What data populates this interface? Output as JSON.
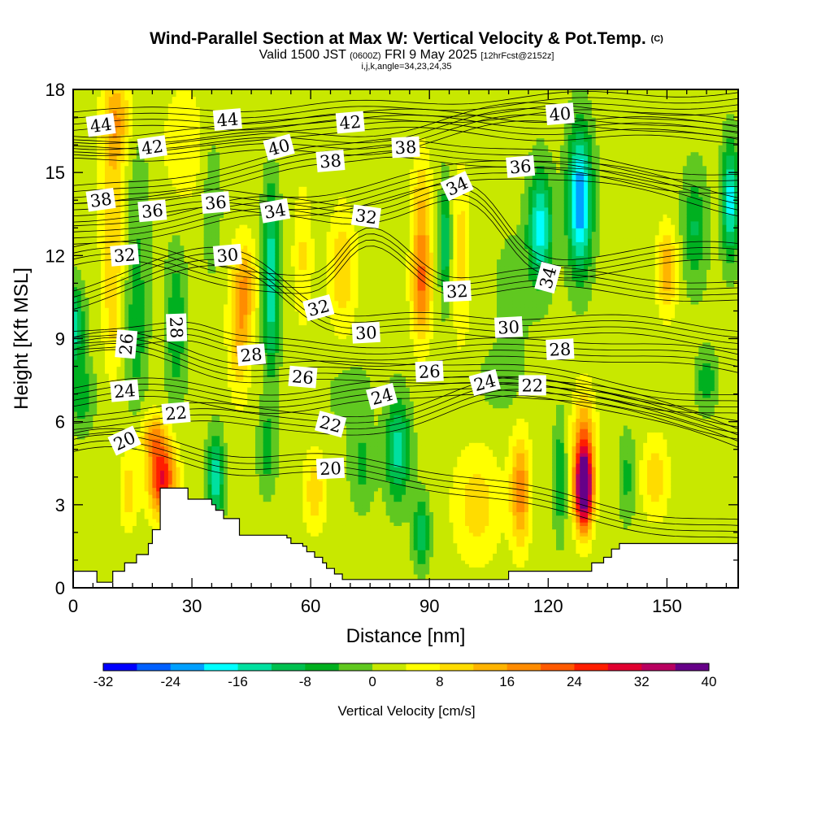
{
  "header": {
    "title_main": "Wind-Parallel Section at Max W: Vertical Velocity & Pot.Temp.",
    "title_mark": "(C)",
    "sub_a": "Valid 1500 JST",
    "sub_b": "(0600Z)",
    "sub_c": "FRI 9 May 2025",
    "sub_d": "[12hrFcst@2152z]",
    "params": "i,j,k,angle=34,23,24,35"
  },
  "chart_data": {
    "type": "heatmap",
    "xlabel": "Distance [nm]",
    "ylabel": "Height [Kft MSL]",
    "xlim": [
      0,
      168
    ],
    "ylim": [
      0,
      18
    ],
    "xticks": [
      0,
      30,
      60,
      90,
      120,
      150
    ],
    "yticks": [
      0,
      3,
      6,
      9,
      12,
      15,
      18
    ],
    "colorbar": {
      "label": "Vertical Velocity [cm/s]",
      "ticks": [
        -32,
        -24,
        -16,
        -8,
        0,
        8,
        16,
        24,
        32,
        40
      ],
      "levels": [
        -32,
        -28,
        -24,
        -20,
        -16,
        -12,
        -8,
        -4,
        0,
        4,
        8,
        12,
        16,
        20,
        24,
        28,
        32,
        36,
        40
      ],
      "colors": [
        "#0000ff",
        "#0060ff",
        "#00a0ff",
        "#00ffff",
        "#00e0a0",
        "#00c050",
        "#00b020",
        "#60c820",
        "#c8e800",
        "#ffff00",
        "#ffdc00",
        "#ffb400",
        "#ff8c00",
        "#ff5a00",
        "#ff1e00",
        "#e00030",
        "#b80060",
        "#660088"
      ]
    },
    "theta_levels": [
      20,
      22,
      24,
      26,
      28,
      30,
      32,
      34,
      36,
      38,
      40,
      42,
      44
    ],
    "contour_labels": [
      {
        "text": "44",
        "x": 7,
        "y": 16.7,
        "rot": -8
      },
      {
        "text": "44",
        "x": 39,
        "y": 16.9,
        "rot": -5
      },
      {
        "text": "42",
        "x": 70,
        "y": 16.8,
        "rot": -5
      },
      {
        "text": "40",
        "x": 123,
        "y": 17.1,
        "rot": -5
      },
      {
        "text": "42",
        "x": 20,
        "y": 15.9,
        "rot": -8
      },
      {
        "text": "40",
        "x": 52,
        "y": 15.9,
        "rot": -15
      },
      {
        "text": "38",
        "x": 65,
        "y": 15.4,
        "rot": -5
      },
      {
        "text": "38",
        "x": 84,
        "y": 15.9,
        "rot": -3
      },
      {
        "text": "36",
        "x": 113,
        "y": 15.2,
        "rot": -5
      },
      {
        "text": "34",
        "x": 97,
        "y": 14.5,
        "rot": -25
      },
      {
        "text": "38",
        "x": 7,
        "y": 14.0,
        "rot": -8
      },
      {
        "text": "36",
        "x": 20,
        "y": 13.6,
        "rot": -5
      },
      {
        "text": "36",
        "x": 36,
        "y": 13.9,
        "rot": -5
      },
      {
        "text": "34",
        "x": 51,
        "y": 13.6,
        "rot": -10
      },
      {
        "text": "32",
        "x": 74,
        "y": 13.4,
        "rot": 8
      },
      {
        "text": "32",
        "x": 13,
        "y": 12.0,
        "rot": -5
      },
      {
        "text": "30",
        "x": 39,
        "y": 12.0,
        "rot": -5
      },
      {
        "text": "34",
        "x": 120,
        "y": 11.2,
        "rot": -75
      },
      {
        "text": "28",
        "x": 26,
        "y": 9.4,
        "rot": 88
      },
      {
        "text": "26",
        "x": 13.5,
        "y": 8.8,
        "rot": -85
      },
      {
        "text": "32",
        "x": 62,
        "y": 10.1,
        "rot": -15
      },
      {
        "text": "32",
        "x": 97,
        "y": 10.7,
        "rot": -3
      },
      {
        "text": "30",
        "x": 74,
        "y": 9.2,
        "rot": -3
      },
      {
        "text": "30",
        "x": 110,
        "y": 9.4,
        "rot": -3
      },
      {
        "text": "28",
        "x": 45,
        "y": 8.4,
        "rot": -5
      },
      {
        "text": "28",
        "x": 123,
        "y": 8.6,
        "rot": -3
      },
      {
        "text": "26",
        "x": 58,
        "y": 7.6,
        "rot": 5
      },
      {
        "text": "26",
        "x": 90,
        "y": 7.8,
        "rot": -3
      },
      {
        "text": "24",
        "x": 13,
        "y": 7.1,
        "rot": -5
      },
      {
        "text": "24",
        "x": 78,
        "y": 6.9,
        "rot": -15
      },
      {
        "text": "24",
        "x": 104,
        "y": 7.4,
        "rot": -15
      },
      {
        "text": "22",
        "x": 116,
        "y": 7.3,
        "rot": 0
      },
      {
        "text": "22",
        "x": 26,
        "y": 6.3,
        "rot": -5
      },
      {
        "text": "22",
        "x": 65,
        "y": 5.9,
        "rot": 15
      },
      {
        "text": "20",
        "x": 13,
        "y": 5.3,
        "rot": -25
      },
      {
        "text": "20",
        "x": 65,
        "y": 4.3,
        "rot": -3
      }
    ],
    "terrain": {
      "x": [
        0,
        6,
        6,
        10,
        10,
        13,
        13,
        16,
        16,
        19,
        19,
        20,
        20,
        22,
        22,
        29,
        29,
        35,
        35,
        36,
        36,
        38,
        38,
        42,
        42,
        54,
        54,
        55,
        55,
        58,
        58,
        59,
        59,
        61,
        61,
        63,
        63,
        64,
        64,
        66,
        66,
        68,
        68,
        70,
        70,
        76,
        76,
        91,
        91,
        110,
        110,
        131,
        131,
        134,
        134,
        136,
        136,
        138,
        138,
        168
      ],
      "y": [
        0.6,
        0.6,
        0.2,
        0.2,
        0.6,
        0.6,
        0.9,
        0.9,
        1.2,
        1.2,
        1.6,
        1.6,
        2.1,
        2.1,
        3.6,
        3.6,
        3.2,
        3.2,
        3.0,
        3.0,
        2.8,
        2.8,
        2.5,
        2.5,
        1.9,
        1.9,
        1.8,
        1.8,
        1.6,
        1.6,
        1.5,
        1.5,
        1.3,
        1.3,
        1.1,
        1.1,
        0.9,
        0.9,
        0.7,
        0.7,
        0.5,
        0.5,
        0.3,
        0.3,
        0.3,
        0.3,
        0.3,
        0.3,
        0.3,
        0.3,
        0.6,
        0.6,
        0.9,
        0.9,
        1.1,
        1.1,
        1.4,
        1.4,
        1.6,
        1.6
      ]
    },
    "w_field": {
      "background": 1.5,
      "cells": [
        {
          "x": 0,
          "y": 9.5,
          "sx": 2.6,
          "sy": 1.4,
          "a": -16
        },
        {
          "x": 2,
          "y": 7,
          "sx": 3,
          "sy": 1.2,
          "a": -9
        },
        {
          "x": 10,
          "y": 14,
          "sx": 3.2,
          "sy": 3.2,
          "a": 9
        },
        {
          "x": 11,
          "y": 17,
          "sx": 3.5,
          "sy": 1.6,
          "a": 12
        },
        {
          "x": 10,
          "y": 10,
          "sx": 2.5,
          "sy": 2.6,
          "a": 7
        },
        {
          "x": 14,
          "y": 3.5,
          "sx": 2.2,
          "sy": 1.4,
          "a": 9
        },
        {
          "x": 22.5,
          "y": 4,
          "sx": 3.5,
          "sy": 1.4,
          "a": 27
        },
        {
          "x": 20,
          "y": 5.5,
          "sx": 3,
          "sy": 0.8,
          "a": 12
        },
        {
          "x": 16,
          "y": 13,
          "sx": 3.5,
          "sy": 3.5,
          "a": -5
        },
        {
          "x": 16,
          "y": 9,
          "sx": 2.5,
          "sy": 2.5,
          "a": -7
        },
        {
          "x": 26,
          "y": 9.5,
          "sx": 2.5,
          "sy": 2.8,
          "a": -9
        },
        {
          "x": 28,
          "y": 16,
          "sx": 6,
          "sy": 2.5,
          "a": 5
        },
        {
          "x": 36,
          "y": 4,
          "sx": 2,
          "sy": 1.5,
          "a": -17
        },
        {
          "x": 35,
          "y": 14,
          "sx": 2.5,
          "sy": 2.5,
          "a": -5
        },
        {
          "x": 42,
          "y": 9.5,
          "sx": 2.8,
          "sy": 2.5,
          "a": 13
        },
        {
          "x": 44,
          "y": 11,
          "sx": 2.5,
          "sy": 1.5,
          "a": 9
        },
        {
          "x": 50,
          "y": 10,
          "sx": 2,
          "sy": 2.5,
          "a": -14
        },
        {
          "x": 50,
          "y": 13,
          "sx": 2,
          "sy": 2,
          "a": -10
        },
        {
          "x": 49,
          "y": 5,
          "sx": 2.2,
          "sy": 1.5,
          "a": -8
        },
        {
          "x": 58,
          "y": 12,
          "sx": 2.5,
          "sy": 2.5,
          "a": 7
        },
        {
          "x": 61,
          "y": 3.5,
          "sx": 3,
          "sy": 1.5,
          "a": 9
        },
        {
          "x": 68,
          "y": 11.5,
          "sx": 3.5,
          "sy": 2.2,
          "a": 10
        },
        {
          "x": 73,
          "y": 4.5,
          "sx": 3,
          "sy": 1.5,
          "a": -7
        },
        {
          "x": 82,
          "y": 5,
          "sx": 3,
          "sy": 1.8,
          "a": -16
        },
        {
          "x": 88,
          "y": 2,
          "sx": 2,
          "sy": 1.2,
          "a": -13
        },
        {
          "x": 88,
          "y": 11,
          "sx": 2.5,
          "sy": 2,
          "a": 19
        },
        {
          "x": 88,
          "y": 14,
          "sx": 2.5,
          "sy": 2,
          "a": 9
        },
        {
          "x": 94,
          "y": 12.5,
          "sx": 1.4,
          "sy": 2,
          "a": -14
        },
        {
          "x": 98,
          "y": 12,
          "sx": 2.2,
          "sy": 3,
          "a": 9
        },
        {
          "x": 102,
          "y": 3,
          "sx": 6,
          "sy": 2,
          "a": 9
        },
        {
          "x": 113,
          "y": 3.5,
          "sx": 2.5,
          "sy": 2,
          "a": 17
        },
        {
          "x": 111,
          "y": 10.5,
          "sx": 4,
          "sy": 2,
          "a": -5
        },
        {
          "x": 118,
          "y": 13,
          "sx": 3,
          "sy": 2,
          "a": -20
        },
        {
          "x": 128,
          "y": 14,
          "sx": 3,
          "sy": 2.5,
          "a": -26
        },
        {
          "x": 123,
          "y": 4,
          "sx": 1.5,
          "sy": 2,
          "a": -10
        },
        {
          "x": 129,
          "y": 3.5,
          "sx": 2.2,
          "sy": 1.4,
          "a": 38
        },
        {
          "x": 129,
          "y": 5,
          "sx": 2.8,
          "sy": 2,
          "a": 18
        },
        {
          "x": 140,
          "y": 4,
          "sx": 2,
          "sy": 1.5,
          "a": -7
        },
        {
          "x": 147,
          "y": 4,
          "sx": 3.5,
          "sy": 1.5,
          "a": 9
        },
        {
          "x": 150,
          "y": 11.5,
          "sx": 2.5,
          "sy": 1.5,
          "a": 14
        },
        {
          "x": 157,
          "y": 13,
          "sx": 3,
          "sy": 2,
          "a": -10
        },
        {
          "x": 166,
          "y": 14,
          "sx": 2,
          "sy": 2,
          "a": -20
        },
        {
          "x": 160,
          "y": 7.5,
          "sx": 2.5,
          "sy": 1,
          "a": -9
        },
        {
          "x": 108,
          "y": 7.5,
          "sx": 5,
          "sy": 1,
          "a": -5
        },
        {
          "x": 70,
          "y": 7,
          "sx": 5,
          "sy": 1,
          "a": -5
        }
      ]
    }
  }
}
